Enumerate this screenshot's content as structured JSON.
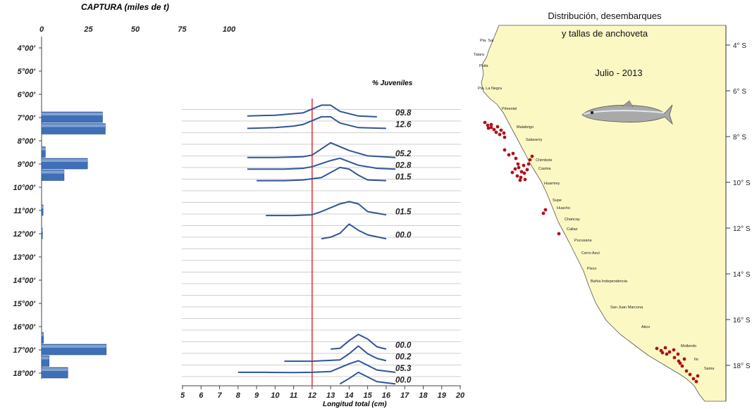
{
  "colors": {
    "bar_fill": "#3f6fb7",
    "line": "#2f5597",
    "grid": "#c8c8c8",
    "limit_line": "#e02020",
    "land": "#fbf8c4",
    "sea": "#ffffff",
    "dots": "#b0101c"
  },
  "chart_data": [
    {
      "type": "bar",
      "orientation": "horizontal",
      "title": "CAPTURA (miles de t)",
      "x_ticks": [
        "0",
        "25",
        "50",
        "75",
        "100"
      ],
      "xlim": [
        0,
        100
      ],
      "lat_labels": [
        "4°00'",
        "5°00'",
        "6°00'",
        "7°00'",
        "8°00'",
        "9°00'",
        "10°00'",
        "11°00'",
        "12°00'",
        "13°00'",
        "14°00'",
        "15°00'",
        "16°00'",
        "17°00'",
        "18°00'"
      ],
      "bars": [
        {
          "lat": 7.0,
          "value": 32.5
        },
        {
          "lat": 7.5,
          "value": 34.0
        },
        {
          "lat": 8.5,
          "value": 2.0
        },
        {
          "lat": 9.0,
          "value": 24.5
        },
        {
          "lat": 9.5,
          "value": 12.0
        },
        {
          "lat": 11.0,
          "value": 0.8
        },
        {
          "lat": 12.0,
          "value": 0.3
        },
        {
          "lat": 16.5,
          "value": 1.0
        },
        {
          "lat": 17.0,
          "value": 34.5
        },
        {
          "lat": 17.5,
          "value": 4.0
        },
        {
          "lat": 18.0,
          "value": 14.0
        }
      ]
    },
    {
      "type": "line",
      "title": "% Juveniles",
      "xlabel": "Longitud total (cm)",
      "x_ticks": [
        "5",
        "6",
        "7",
        "8",
        "9",
        "10",
        "11",
        "12",
        "13",
        "14",
        "15",
        "16",
        "17",
        "18",
        "19",
        "20"
      ],
      "xlim": [
        5,
        20
      ],
      "reference_x": 12,
      "series": [
        {
          "juv": "09.8",
          "lat": 7.0,
          "points": [
            [
              8.5,
              0.1
            ],
            [
              10.0,
              0.15
            ],
            [
              11.5,
              0.3
            ],
            [
              12.5,
              0.8
            ],
            [
              13.0,
              0.8
            ],
            [
              13.5,
              0.4
            ],
            [
              14.5,
              0.1
            ],
            [
              15.5,
              0.05
            ]
          ]
        },
        {
          "juv": "12.6",
          "lat": 7.5,
          "points": [
            [
              8.5,
              0.05
            ],
            [
              10.0,
              0.1
            ],
            [
              11.0,
              0.2
            ],
            [
              11.5,
              0.3
            ],
            [
              12.5,
              0.8
            ],
            [
              13.0,
              0.8
            ],
            [
              13.5,
              0.4
            ],
            [
              14.5,
              0.1
            ],
            [
              16.0,
              0.05
            ]
          ]
        },
        {
          "juv": "05.2",
          "lat": 8.75,
          "points": [
            [
              8.5,
              0.05
            ],
            [
              10.0,
              0.05
            ],
            [
              11.5,
              0.1
            ],
            [
              12.0,
              0.2
            ],
            [
              13.0,
              1.0
            ],
            [
              14.0,
              0.5
            ],
            [
              15.0,
              0.15
            ],
            [
              16.5,
              0.05
            ]
          ]
        },
        {
          "juv": "02.8",
          "lat": 9.25,
          "points": [
            [
              8.5,
              0.05
            ],
            [
              10.5,
              0.05
            ],
            [
              11.5,
              0.1
            ],
            [
              12.0,
              0.2
            ],
            [
              13.0,
              0.6
            ],
            [
              13.5,
              0.75
            ],
            [
              14.5,
              0.3
            ],
            [
              15.5,
              0.1
            ],
            [
              16.5,
              0.05
            ]
          ]
        },
        {
          "juv": "01.5",
          "lat": 9.75,
          "points": [
            [
              9.0,
              0.05
            ],
            [
              10.5,
              0.05
            ],
            [
              11.5,
              0.1
            ],
            [
              12.5,
              0.25
            ],
            [
              13.5,
              0.9
            ],
            [
              14.0,
              0.8
            ],
            [
              14.5,
              0.4
            ],
            [
              15.0,
              0.1
            ],
            [
              16.0,
              0.05
            ]
          ]
        },
        {
          "juv": "01.5",
          "lat": 11.25,
          "points": [
            [
              9.5,
              0.05
            ],
            [
              11.0,
              0.05
            ],
            [
              12.0,
              0.1
            ],
            [
              12.5,
              0.3
            ],
            [
              13.5,
              0.8
            ],
            [
              14.0,
              0.95
            ],
            [
              14.5,
              0.8
            ],
            [
              15.0,
              0.3
            ],
            [
              16.0,
              0.1
            ]
          ]
        },
        {
          "juv": "00.0",
          "lat": 12.25,
          "points": [
            [
              12.5,
              0.05
            ],
            [
              13.0,
              0.15
            ],
            [
              13.5,
              0.4
            ],
            [
              14.0,
              1.0
            ],
            [
              14.5,
              0.6
            ],
            [
              15.0,
              0.3
            ],
            [
              16.0,
              0.05
            ]
          ]
        },
        {
          "juv": "00.0",
          "lat": 17.0,
          "points": [
            [
              13.0,
              0.05
            ],
            [
              13.5,
              0.1
            ],
            [
              14.0,
              0.6
            ],
            [
              14.5,
              1.0
            ],
            [
              15.0,
              0.7
            ],
            [
              15.5,
              0.2
            ],
            [
              16.0,
              0.05
            ]
          ]
        },
        {
          "juv": "00.2",
          "lat": 17.5,
          "points": [
            [
              10.5,
              0.02
            ],
            [
              12.0,
              0.02
            ],
            [
              13.5,
              0.1
            ],
            [
              14.0,
              0.5
            ],
            [
              14.5,
              1.0
            ],
            [
              15.0,
              0.5
            ],
            [
              15.5,
              0.2
            ],
            [
              16.0,
              0.05
            ]
          ]
        },
        {
          "juv": "05.3",
          "lat": 18.0,
          "points": [
            [
              8.0,
              0.05
            ],
            [
              9.5,
              0.05
            ],
            [
              11.0,
              0.03
            ],
            [
              12.0,
              0.05
            ],
            [
              13.0,
              0.1
            ],
            [
              14.0,
              0.6
            ],
            [
              14.5,
              0.8
            ],
            [
              15.0,
              0.5
            ],
            [
              15.5,
              0.2
            ],
            [
              16.5,
              0.05
            ]
          ]
        },
        {
          "juv": "00.0",
          "lat": 18.5,
          "points": [
            [
              13.5,
              0.05
            ],
            [
              14.0,
              0.4
            ],
            [
              14.5,
              0.8
            ],
            [
              15.0,
              0.5
            ],
            [
              15.5,
              0.2
            ],
            [
              16.5,
              0.05
            ]
          ]
        }
      ]
    }
  ],
  "map": {
    "title_line1": "Distribución, desembarques",
    "title_line2": "y tallas de anchoveta",
    "period": "Julio - 2013",
    "lat_labels": [
      "4° S",
      "6° S",
      "8° S",
      "10° S",
      "12° S",
      "14° S",
      "16° S",
      "18° S"
    ],
    "ports": [
      "Pta. Sal",
      "Talara",
      "Paita",
      "Pta. La Negra",
      "Pimentel",
      "Malabrigo",
      "Salaverry",
      "Chimbote",
      "Casma",
      "Huarmey",
      "Supe",
      "Huacho",
      "Chancay",
      "Callao",
      "Pucusana",
      "Cerro Azul",
      "Pisco",
      "Bahía Independencia",
      "San Juan Marcona",
      "Atico",
      "Mollendo",
      "Ilo",
      "Sama"
    ]
  }
}
